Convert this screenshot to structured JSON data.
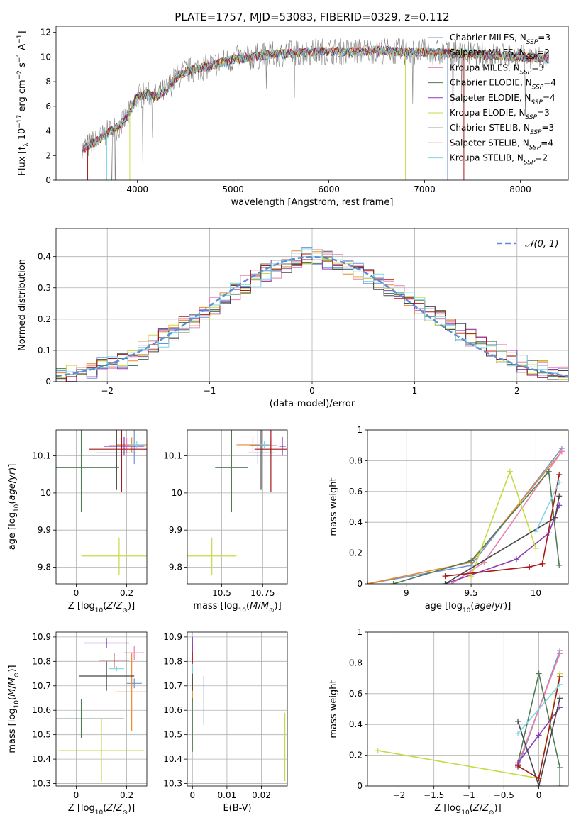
{
  "figure_title": "PLATE=1757, MJD=53083, FIBERID=0329, z=0.112",
  "colors": {
    "Chabrier MILES": "#6f93d4",
    "Salpeter MILES": "#e88a2c",
    "Kroupa MILES": "#ea7fb0",
    "Chabrier ELODIE": "#507b58",
    "Salpeter ELODIE": "#8a3bb5",
    "Kroupa ELODIE": "#c8d947",
    "Chabrier STELIB": "#474747",
    "Salpeter STELIB": "#a41b1b",
    "Kroupa STELIB": "#7fd6e4",
    "gauss": "#5a8fd6",
    "data": "#7f7f7f",
    "grid": "#b0b0b0"
  },
  "chart_data": [
    {
      "id": "spectrum",
      "type": "line",
      "title": "PLATE=1757, MJD=53083, FIBERID=0329, z=0.112",
      "xlabel": "wavelength [Angstrom, rest frame]",
      "ylabel": "Flux [f_λ 10^-17 erg cm^-2 s^-1 A^-1]",
      "xlim": [
        3150,
        8500
      ],
      "ylim": [
        0,
        12.5
      ],
      "xticks": [
        4000,
        5000,
        6000,
        7000,
        8000
      ],
      "yticks": [
        0,
        2,
        4,
        6,
        8,
        10,
        12
      ],
      "grid": false,
      "legend_position": "top-right",
      "legend": [
        {
          "name": "Chabrier MILES",
          "nssp": "3"
        },
        {
          "name": "Salpeter MILES",
          "nssp": "2"
        },
        {
          "name": "Kroupa MILES",
          "nssp": "3"
        },
        {
          "name": "Chabrier ELODIE",
          "nssp": "4"
        },
        {
          "name": "Salpeter ELODIE",
          "nssp": "4"
        },
        {
          "name": "Kroupa ELODIE",
          "nssp": "3"
        },
        {
          "name": "Chabrier STELIB",
          "nssp": "3"
        },
        {
          "name": "Salpeter STELIB",
          "nssp": "4"
        },
        {
          "name": "Kroupa STELIB",
          "nssp": "2"
        }
      ],
      "continuum": {
        "x": [
          3420,
          3600,
          3700,
          3800,
          3900,
          4000,
          4100,
          4200,
          4300,
          4400,
          4500,
          4600,
          4800,
          5000,
          5200,
          5400,
          5600,
          5800,
          6000,
          6200,
          6400,
          6600,
          6800,
          7000,
          7200,
          7400,
          7600,
          7800,
          8000,
          8200,
          8300
        ],
        "y": [
          2.5,
          3.3,
          3.9,
          4.3,
          5.2,
          6.8,
          7.0,
          6.8,
          7.3,
          8.3,
          8.8,
          9.0,
          9.4,
          9.8,
          10.0,
          10.2,
          10.3,
          10.4,
          10.5,
          10.4,
          10.5,
          10.5,
          10.4,
          10.4,
          10.3,
          10.3,
          10.2,
          10.1,
          10.0,
          9.9,
          9.8
        ]
      }
    },
    {
      "id": "residuals",
      "type": "histogram",
      "xlabel": "(data-model)/error",
      "ylabel": "Normed distribution",
      "xlim": [
        -2.5,
        2.5
      ],
      "ylim": [
        0,
        0.49
      ],
      "xticks": [
        -2,
        -1,
        0,
        1,
        2
      ],
      "yticks": [
        0.0,
        0.1,
        0.2,
        0.3,
        0.4
      ],
      "grid": true,
      "legend_position": "top-right",
      "legend": [
        {
          "name": "𝒩(0, 1)",
          "style": "dashed"
        }
      ],
      "bin_width": 0.1,
      "bin_start": -2.5,
      "base_density": [
        0.02,
        0.025,
        0.03,
        0.04,
        0.05,
        0.06,
        0.07,
        0.08,
        0.1,
        0.12,
        0.14,
        0.16,
        0.18,
        0.2,
        0.22,
        0.24,
        0.27,
        0.29,
        0.31,
        0.33,
        0.35,
        0.36,
        0.37,
        0.39,
        0.4,
        0.4,
        0.39,
        0.38,
        0.37,
        0.35,
        0.34,
        0.32,
        0.3,
        0.28,
        0.26,
        0.24,
        0.22,
        0.2,
        0.18,
        0.16,
        0.14,
        0.12,
        0.11,
        0.09,
        0.08,
        0.06,
        0.05,
        0.04,
        0.03,
        0.025
      ]
    },
    {
      "id": "age_vs_Z",
      "type": "errorbar",
      "xlabel": "Z [log10(Z/Z⊙)]",
      "ylabel": "age [log10(age/yr)]",
      "xlim": [
        -0.08,
        0.28
      ],
      "ylim": [
        9.755,
        10.17
      ],
      "xticks": [
        0.0,
        0.2
      ],
      "yticks": [
        9.8,
        9.9,
        10.0,
        10.1
      ],
      "grid": true,
      "points": [
        {
          "model": "Chabrier MILES",
          "x": 0.23,
          "y": 10.128,
          "xerr": 0.04,
          "yerr": 0.05
        },
        {
          "model": "Salpeter MILES",
          "x": 0.22,
          "y": 10.13,
          "xerr": 0.06,
          "yerr": 0.02
        },
        {
          "model": "Kroupa MILES",
          "x": 0.2,
          "y": 10.128,
          "xerr": 0.07,
          "yerr": 0.02
        },
        {
          "model": "Chabrier ELODIE",
          "x": 0.02,
          "y": 10.068,
          "xerr": 0.15,
          "yerr": 0.12
        },
        {
          "model": "Salpeter ELODIE",
          "x": 0.19,
          "y": 10.126,
          "xerr": 0.08,
          "yerr": 0.025
        },
        {
          "model": "Kroupa ELODIE",
          "x": 0.17,
          "y": 9.83,
          "xerr": 0.15,
          "yerr": 0.05
        },
        {
          "model": "Chabrier STELIB",
          "x": 0.16,
          "y": 10.108,
          "xerr": 0.08,
          "yerr": 0.1
        },
        {
          "model": "Salpeter STELIB",
          "x": 0.18,
          "y": 10.118,
          "xerr": 0.13,
          "yerr": 0.115
        },
        {
          "model": "Kroupa STELIB",
          "x": 0.24,
          "y": 10.13,
          "xerr": 0.03,
          "yerr": 0.01
        }
      ]
    },
    {
      "id": "age_vs_mass",
      "type": "errorbar",
      "xlabel": "mass [log10(M/M⊙)]",
      "ylabel": "",
      "xlim": [
        10.29,
        10.9
      ],
      "ylim": [
        9.755,
        10.17
      ],
      "xticks": [
        10.5,
        10.75
      ],
      "yticks": [
        9.8,
        9.9,
        10.0,
        10.1
      ],
      "grid": true,
      "points": [
        {
          "model": "Chabrier MILES",
          "x": 10.72,
          "y": 10.128,
          "xerr": 0.05,
          "yerr": 0.05
        },
        {
          "model": "Salpeter MILES",
          "x": 10.69,
          "y": 10.13,
          "xerr": 0.1,
          "yerr": 0.02
        },
        {
          "model": "Kroupa MILES",
          "x": 10.8,
          "y": 10.128,
          "xerr": 0.04,
          "yerr": 0.02
        },
        {
          "model": "Chabrier ELODIE",
          "x": 10.56,
          "y": 10.068,
          "xerr": 0.1,
          "yerr": 0.12
        },
        {
          "model": "Salpeter ELODIE",
          "x": 10.87,
          "y": 10.126,
          "xerr": 0.02,
          "yerr": 0.025
        },
        {
          "model": "Kroupa ELODIE",
          "x": 10.44,
          "y": 9.83,
          "xerr": 0.15,
          "yerr": 0.05
        },
        {
          "model": "Chabrier STELIB",
          "x": 10.74,
          "y": 10.108,
          "xerr": 0.08,
          "yerr": 0.1
        },
        {
          "model": "Salpeter STELIB",
          "x": 10.8,
          "y": 10.118,
          "xerr": 0.1,
          "yerr": 0.115
        },
        {
          "model": "Kroupa STELIB",
          "x": 10.76,
          "y": 10.13,
          "xerr": 0.03,
          "yerr": 0.01
        }
      ]
    },
    {
      "id": "weight_vs_age",
      "type": "line",
      "xlabel": "age [log10(age/yr)]",
      "ylabel": "mass weight",
      "xlim": [
        8.7,
        10.25
      ],
      "ylim": [
        0.0,
        1.0
      ],
      "xticks": [
        9.0,
        9.5,
        10.0
      ],
      "yticks": [
        0.0,
        0.2,
        0.4,
        0.6,
        0.8,
        1.0
      ],
      "grid": true,
      "series": [
        {
          "model": "Chabrier MILES",
          "x": [
            8.7,
            9.5,
            10.2
          ],
          "y": [
            0.0,
            0.12,
            0.88
          ]
        },
        {
          "model": "Salpeter MILES",
          "x": [
            8.7,
            9.5,
            10.2
          ],
          "y": [
            0.0,
            0.14,
            0.86
          ]
        },
        {
          "model": "Kroupa MILES",
          "x": [
            9.35,
            9.6,
            10.2
          ],
          "y": [
            0.0,
            0.14,
            0.86
          ]
        },
        {
          "model": "Chabrier ELODIE",
          "x": [
            8.9,
            9.5,
            10.1,
            10.18
          ],
          "y": [
            0.0,
            0.15,
            0.73,
            0.12
          ]
        },
        {
          "model": "Salpeter ELODIE",
          "x": [
            9.3,
            9.85,
            10.1,
            10.18
          ],
          "y": [
            0.0,
            0.16,
            0.33,
            0.51
          ]
        },
        {
          "model": "Kroupa ELODIE",
          "x": [
            9.5,
            9.8,
            10.0
          ],
          "y": [
            0.05,
            0.73,
            0.23
          ]
        },
        {
          "model": "Chabrier STELIB",
          "x": [
            9.3,
            10.15,
            10.18
          ],
          "y": [
            0.0,
            0.43,
            0.57
          ]
        },
        {
          "model": "Salpeter STELIB",
          "x": [
            9.3,
            9.95,
            10.05,
            10.18
          ],
          "y": [
            0.05,
            0.11,
            0.13,
            0.71
          ]
        },
        {
          "model": "Kroupa STELIB",
          "x": [
            10.0,
            10.18
          ],
          "y": [
            0.34,
            0.66
          ]
        }
      ]
    },
    {
      "id": "mass_vs_Z",
      "type": "errorbar",
      "xlabel": "Z [log10(Z/Z⊙)]",
      "ylabel": "mass [log10(M/M⊙)]",
      "xlim": [
        -0.08,
        0.28
      ],
      "ylim": [
        10.29,
        10.92
      ],
      "xticks": [
        0.0,
        0.2
      ],
      "yticks": [
        10.3,
        10.4,
        10.5,
        10.6,
        10.7,
        10.8,
        10.9
      ],
      "grid": true,
      "points": [
        {
          "model": "Chabrier MILES",
          "x": 0.23,
          "y": 10.71,
          "xerr": 0.03,
          "yerr": 0.02
        },
        {
          "model": "Salpeter MILES",
          "x": 0.22,
          "y": 10.675,
          "xerr": 0.06,
          "yerr": 0.16
        },
        {
          "model": "Kroupa MILES",
          "x": 0.23,
          "y": 10.835,
          "xerr": 0.04,
          "yerr": 0.03
        },
        {
          "model": "Chabrier ELODIE",
          "x": 0.02,
          "y": 10.565,
          "xerr": 0.17,
          "yerr": 0.08
        },
        {
          "model": "Salpeter ELODIE",
          "x": 0.12,
          "y": 10.875,
          "xerr": 0.09,
          "yerr": 0.02
        },
        {
          "model": "Kroupa ELODIE",
          "x": 0.1,
          "y": 10.435,
          "xerr": 0.17,
          "yerr": 0.13
        },
        {
          "model": "Chabrier STELIB",
          "x": 0.12,
          "y": 10.74,
          "xerr": 0.11,
          "yerr": 0.06
        },
        {
          "model": "Salpeter STELIB",
          "x": 0.15,
          "y": 10.805,
          "xerr": 0.06,
          "yerr": 0.03
        },
        {
          "model": "Kroupa STELIB",
          "x": 0.16,
          "y": 10.77,
          "xerr": 0.03,
          "yerr": 0.01
        }
      ]
    },
    {
      "id": "mass_vs_ebv",
      "type": "errorbar",
      "xlabel": "E(B-V)",
      "ylabel": "",
      "xlim": [
        -0.0015,
        0.0275
      ],
      "ylim": [
        10.29,
        10.92
      ],
      "xticks": [
        0.0,
        0.01,
        0.02
      ],
      "yticks": [
        10.3,
        10.4,
        10.5,
        10.6,
        10.7,
        10.8,
        10.9
      ],
      "grid": true,
      "points": [
        {
          "model": "Chabrier MILES",
          "x": 0.0033,
          "y": 10.64,
          "xerr": 0,
          "yerr": 0.1
        },
        {
          "model": "Salpeter MILES",
          "x": 0.0,
          "y": 10.68,
          "xerr": 0,
          "yerr": 0.05
        },
        {
          "model": "Kroupa MILES",
          "x": 0.0,
          "y": 10.84,
          "xerr": 0,
          "yerr": 0.03
        },
        {
          "model": "Chabrier ELODIE",
          "x": 0.0,
          "y": 10.54,
          "xerr": 0,
          "yerr": 0.11
        },
        {
          "model": "Salpeter ELODIE",
          "x": 0.0,
          "y": 10.87,
          "xerr": 0,
          "yerr": 0.03
        },
        {
          "model": "Kroupa ELODIE",
          "x": 0.0268,
          "y": 10.45,
          "xerr": 0,
          "yerr": 0.14
        },
        {
          "model": "Chabrier STELIB",
          "x": 0.0,
          "y": 10.73,
          "xerr": 0,
          "yerr": 0.05
        },
        {
          "model": "Salpeter STELIB",
          "x": 0.0,
          "y": 10.81,
          "xerr": 0,
          "yerr": 0.03
        },
        {
          "model": "Kroupa STELIB",
          "x": 0.0,
          "y": 10.77,
          "xerr": 0,
          "yerr": 0.02
        }
      ]
    },
    {
      "id": "weight_vs_Z",
      "type": "line",
      "xlabel": "Z [log10(Z/Z⊙)]",
      "ylabel": "mass weight",
      "xlim": [
        -2.45,
        0.42
      ],
      "ylim": [
        0.0,
        1.0
      ],
      "xticks": [
        -2.0,
        -1.5,
        -1.0,
        -0.5,
        0.0
      ],
      "yticks": [
        0.0,
        0.2,
        0.4,
        0.6,
        0.8,
        1.0
      ],
      "grid": true,
      "series": [
        {
          "model": "Chabrier MILES",
          "x": [
            -0.3,
            0.3
          ],
          "y": [
            0.12,
            0.88
          ]
        },
        {
          "model": "Salpeter MILES",
          "x": [
            -0.3,
            0.3
          ],
          "y": [
            0.14,
            0.86
          ]
        },
        {
          "model": "Kroupa MILES",
          "x": [
            -0.3,
            0.3
          ],
          "y": [
            0.14,
            0.86
          ]
        },
        {
          "model": "Chabrier ELODIE",
          "x": [
            0.3,
            0.3,
            0.0,
            -0.3
          ],
          "y": [
            0.0,
            0.12,
            0.73,
            0.15
          ]
        },
        {
          "model": "Salpeter ELODIE",
          "x": [
            -0.3,
            0.0,
            0.3
          ],
          "y": [
            0.15,
            0.33,
            0.51
          ]
        },
        {
          "model": "Kroupa ELODIE",
          "x": [
            -2.3,
            0.0,
            0.3
          ],
          "y": [
            0.23,
            0.05,
            0.73
          ]
        },
        {
          "model": "Chabrier STELIB",
          "x": [
            -0.3,
            0.0,
            0.3
          ],
          "y": [
            0.42,
            0.0,
            0.57
          ]
        },
        {
          "model": "Salpeter STELIB",
          "x": [
            -0.3,
            0.0,
            0.3
          ],
          "y": [
            0.13,
            0.05,
            0.71
          ]
        },
        {
          "model": "Kroupa STELIB",
          "x": [
            -0.3,
            0.3
          ],
          "y": [
            0.34,
            0.66
          ]
        }
      ]
    }
  ]
}
